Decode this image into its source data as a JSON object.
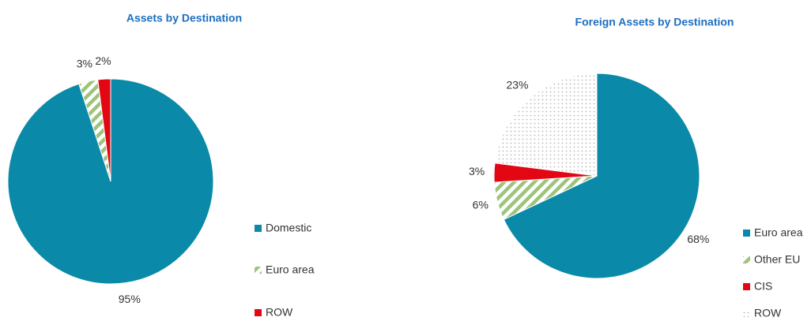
{
  "chart_data": [
    {
      "type": "pie",
      "title": "Assets by Destination",
      "categories": [
        "Domestic",
        "Euro area",
        "ROW"
      ],
      "values": [
        95,
        3,
        2
      ],
      "value_labels": [
        "95%",
        "3%",
        "2%"
      ],
      "colors": [
        "#0a8aa8",
        "#9cc47a",
        "#e30613"
      ],
      "patterns": [
        "solid",
        "hatch",
        "solid"
      ]
    },
    {
      "type": "pie",
      "title": "Foreign Assets by Destination",
      "categories": [
        "Euro area",
        "Other EU",
        "CIS",
        "ROW"
      ],
      "values": [
        68,
        6,
        3,
        23
      ],
      "value_labels": [
        "68%",
        "6%",
        "3%",
        "23%"
      ],
      "colors": [
        "#0a8aa8",
        "#9cc47a",
        "#e30613",
        "#b8b8b8"
      ],
      "patterns": [
        "solid",
        "hatch",
        "solid",
        "dots"
      ]
    }
  ]
}
